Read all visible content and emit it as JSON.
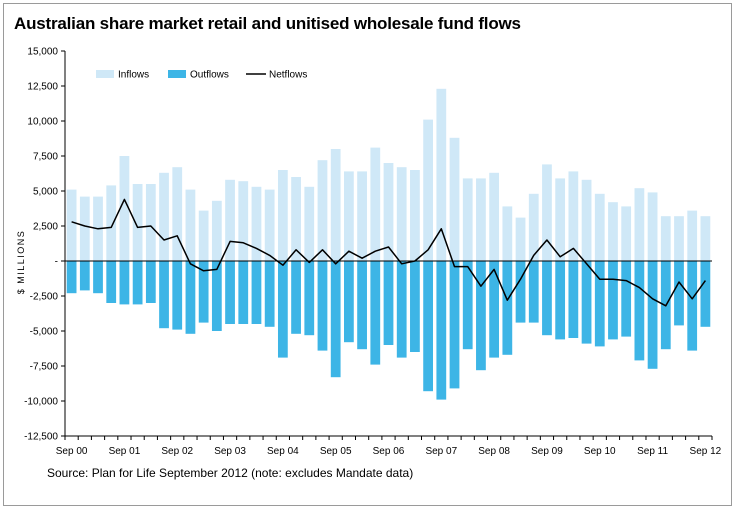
{
  "chart_data": {
    "type": "bar",
    "title": "Australian share market retail and unitised wholesale fund flows",
    "ylabel": "$ MILLIONS",
    "xlabel": "",
    "ylim": [
      -12500,
      15000
    ],
    "yticks": [
      15000,
      12500,
      10000,
      7500,
      5000,
      2500,
      0,
      -2500,
      -5000,
      -7500,
      -10000,
      -12500
    ],
    "ytick_labels": [
      "15,000",
      "12,500",
      "10,000",
      "7,500",
      "5,000",
      "2,500",
      "-",
      "-2,500",
      "-5,000",
      "-7,500",
      "-10,000",
      "-12,500"
    ],
    "xtick_labels": [
      "Sep 00",
      "Sep 01",
      "Sep 02",
      "Sep 03",
      "Sep 04",
      "Sep 05",
      "Sep 06",
      "Sep 07",
      "Sep 08",
      "Sep 09",
      "Sep 10",
      "Sep 11",
      "Sep 12"
    ],
    "xtick_index": [
      0,
      4,
      8,
      12,
      16,
      20,
      24,
      28,
      32,
      36,
      40,
      44,
      48
    ],
    "grid": false,
    "legend": "top-left",
    "colors": {
      "inflows": "#cfe8f7",
      "outflows": "#3db5e6",
      "netflows": "#000000"
    },
    "series": [
      {
        "name": "Inflows",
        "type": "bar",
        "values": [
          5100,
          4600,
          4600,
          5400,
          7500,
          5500,
          5500,
          6300,
          6700,
          5100,
          3600,
          4300,
          5800,
          5700,
          5300,
          5100,
          6500,
          6000,
          5300,
          7200,
          8000,
          6400,
          6400,
          8100,
          7000,
          6700,
          6500,
          10100,
          12300,
          8800,
          5900,
          5900,
          6300,
          3900,
          3100,
          4800,
          6900,
          5900,
          6400,
          5800,
          4800,
          4200,
          3900,
          5200,
          4900,
          3200,
          3200,
          3600,
          3200
        ]
      },
      {
        "name": "Outflows",
        "type": "bar",
        "values": [
          -2300,
          -2100,
          -2300,
          -3000,
          -3100,
          -3100,
          -3000,
          -4800,
          -4900,
          -5200,
          -4400,
          -5000,
          -4500,
          -4500,
          -4500,
          -4700,
          -6900,
          -5200,
          -5300,
          -6400,
          -8300,
          -5800,
          -6300,
          -7400,
          -6000,
          -6900,
          -6500,
          -9300,
          -9900,
          -9100,
          -6300,
          -7800,
          -6900,
          -6700,
          -4400,
          -4400,
          -5300,
          -5600,
          -5500,
          -5900,
          -6100,
          -5600,
          -5400,
          -7100,
          -7700,
          -6300,
          -4600,
          -6400,
          -4700
        ]
      },
      {
        "name": "Netflows",
        "type": "line",
        "values": [
          2800,
          2500,
          2300,
          2400,
          4400,
          2400,
          2500,
          1500,
          1800,
          -200,
          -700,
          -600,
          1400,
          1300,
          900,
          400,
          -300,
          800,
          -100,
          800,
          -200,
          700,
          200,
          700,
          1000,
          -200,
          0,
          800,
          2300,
          -400,
          -400,
          -1800,
          -600,
          -2800,
          -1300,
          400,
          1500,
          300,
          900,
          -200,
          -1300,
          -1300,
          -1400,
          -1900,
          -2700,
          -3200,
          -1500,
          -2700,
          -1400
        ]
      }
    ]
  },
  "source": "Source: Plan for Life September 2012 (note: excludes Mandate data)"
}
